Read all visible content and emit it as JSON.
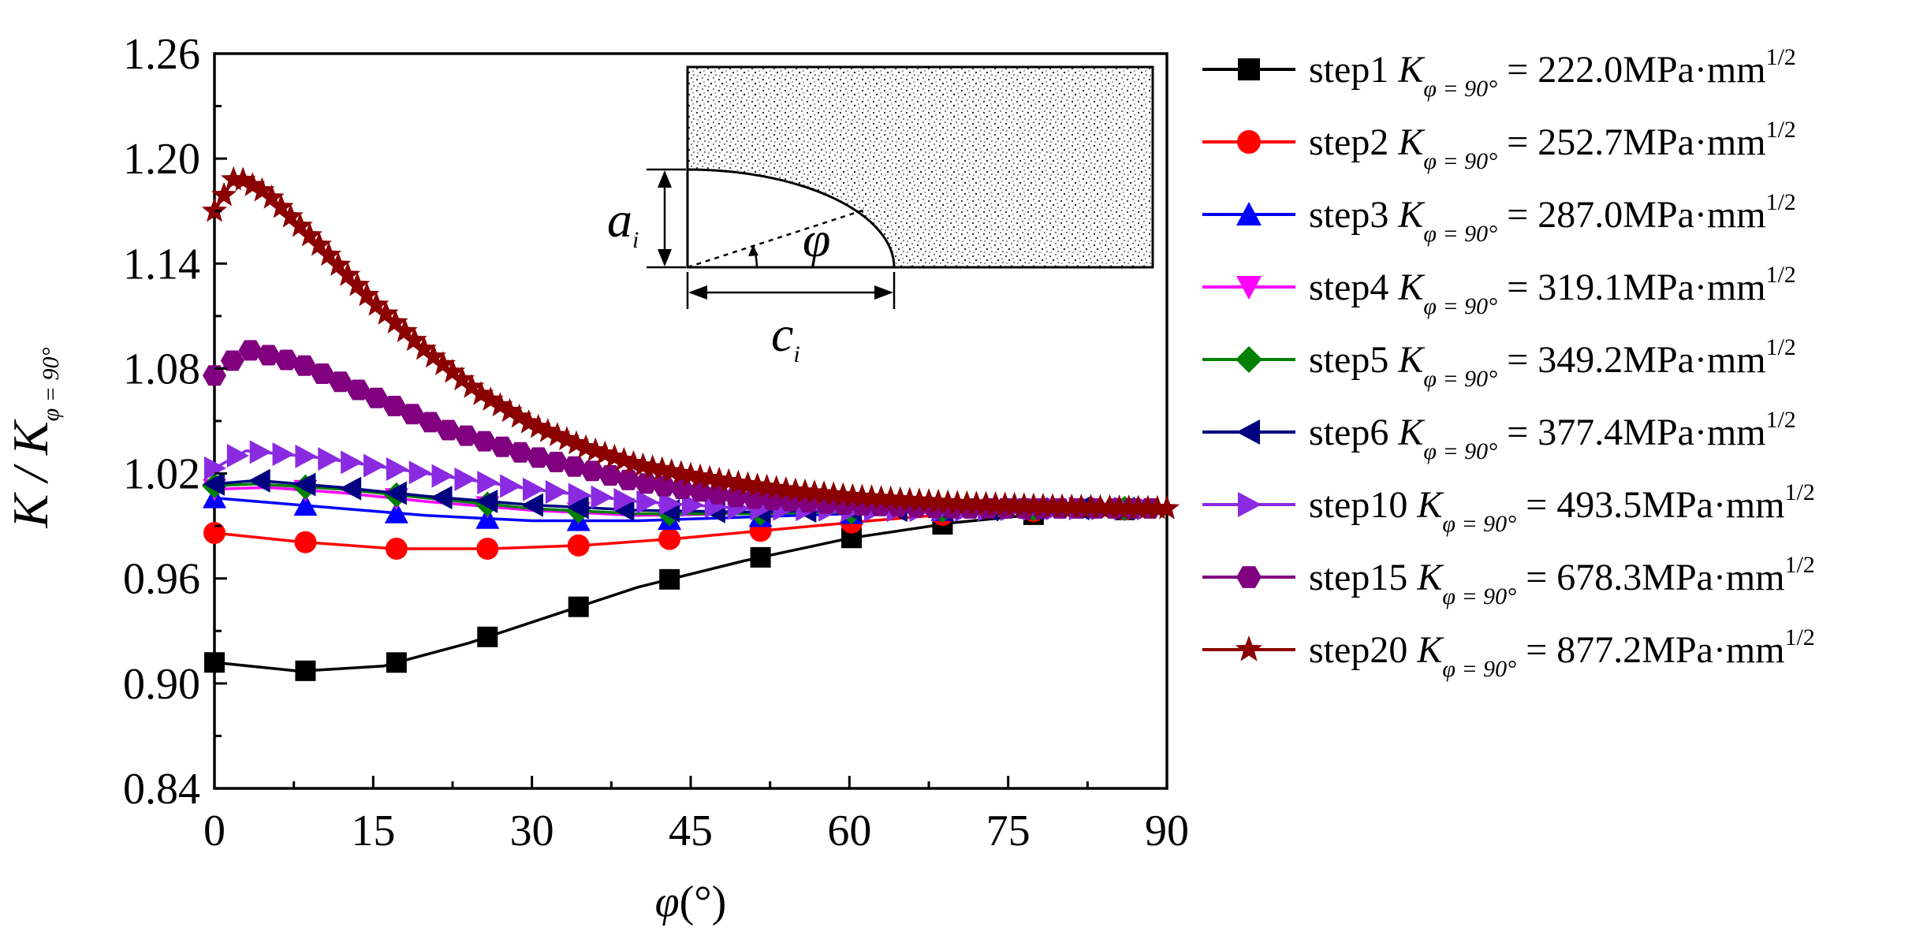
{
  "chart_data": {
    "type": "line",
    "xlabel_var": "φ",
    "xlabel_unit": "(°)",
    "ylabel_main": "K / K",
    "ylabel_sub": "φ = 90°",
    "xlim": [
      0,
      90
    ],
    "ylim": [
      0.84,
      1.26
    ],
    "xticks": [
      "0",
      "15",
      "30",
      "45",
      "60",
      "75",
      "90"
    ],
    "yticks": [
      "0.84",
      "0.90",
      "0.96",
      "1.02",
      "1.08",
      "1.14",
      "1.20",
      "1.26"
    ],
    "legend_position": "right",
    "legend_k_symbol": "K",
    "legend_k_sub": "φ = 90°",
    "legend_unit": "MPa·mm",
    "legend_exp": "1/2",
    "inset": {
      "label_a": "a",
      "label_c": "c",
      "label_i": "i",
      "label_phi": "φ"
    },
    "series": [
      {
        "name": "step1",
        "value_text": "= 222.0",
        "color": "#000000",
        "marker": "square",
        "marker_step": 8.6,
        "points": [
          [
            0,
            0.912
          ],
          [
            8,
            0.907
          ],
          [
            16,
            0.91
          ],
          [
            24,
            0.923
          ],
          [
            32,
            0.939
          ],
          [
            40,
            0.955
          ],
          [
            50,
            0.97
          ],
          [
            60,
            0.983
          ],
          [
            70,
            0.992
          ],
          [
            80,
            0.998
          ],
          [
            90,
            1.0
          ]
        ]
      },
      {
        "name": "step2",
        "value_text": "= 252.7",
        "color": "#ff0000",
        "marker": "circle",
        "marker_step": 8.6,
        "points": [
          [
            0,
            0.986
          ],
          [
            8,
            0.981
          ],
          [
            17,
            0.977
          ],
          [
            26,
            0.977
          ],
          [
            35,
            0.979
          ],
          [
            44,
            0.983
          ],
          [
            53,
            0.988
          ],
          [
            62,
            0.993
          ],
          [
            70,
            0.997
          ],
          [
            80,
            0.999
          ],
          [
            90,
            1.0
          ]
        ]
      },
      {
        "name": "step3",
        "value_text": "= 287.0",
        "color": "#0000ff",
        "marker": "triangle-up",
        "marker_step": 8.6,
        "points": [
          [
            0,
            1.006
          ],
          [
            10,
            1.001
          ],
          [
            20,
            0.996
          ],
          [
            30,
            0.993
          ],
          [
            40,
            0.993
          ],
          [
            50,
            0.995
          ],
          [
            60,
            0.997
          ],
          [
            70,
            0.999
          ],
          [
            80,
            1.0
          ],
          [
            90,
            1.0
          ]
        ]
      },
      {
        "name": "step4",
        "value_text": "= 319.1",
        "color": "#ff00ff",
        "marker": "triangle-down",
        "marker_step": 8.6,
        "points": [
          [
            0,
            1.011
          ],
          [
            5,
            1.012
          ],
          [
            12,
            1.009
          ],
          [
            20,
            1.004
          ],
          [
            30,
            0.999
          ],
          [
            40,
            0.996
          ],
          [
            50,
            0.997
          ],
          [
            60,
            0.998
          ],
          [
            70,
            0.999
          ],
          [
            80,
            1.0
          ],
          [
            90,
            1.0
          ]
        ]
      },
      {
        "name": "step5",
        "value_text": "= 349.2",
        "color": "#008000",
        "marker": "diamond",
        "marker_step": 8.6,
        "points": [
          [
            0,
            1.013
          ],
          [
            4,
            1.014
          ],
          [
            12,
            1.011
          ],
          [
            20,
            1.006
          ],
          [
            30,
            1.0
          ],
          [
            40,
            0.997
          ],
          [
            50,
            0.997
          ],
          [
            60,
            0.998
          ],
          [
            70,
            0.999
          ],
          [
            80,
            1.0
          ],
          [
            90,
            1.0
          ]
        ]
      },
      {
        "name": "step6",
        "value_text": "= 377.4",
        "color": "#000080",
        "marker": "triangle-left",
        "marker_step": 4.3,
        "points": [
          [
            0,
            1.014
          ],
          [
            4,
            1.016
          ],
          [
            12,
            1.012
          ],
          [
            20,
            1.007
          ],
          [
            30,
            1.002
          ],
          [
            40,
            0.999
          ],
          [
            50,
            0.998
          ],
          [
            60,
            0.999
          ],
          [
            70,
            0.999
          ],
          [
            80,
            1.0
          ],
          [
            90,
            1.0
          ]
        ]
      },
      {
        "name": "step10",
        "value_text": "= 493.5",
        "color": "#8a2be2",
        "marker": "triangle-right",
        "marker_step": 2.15,
        "points": [
          [
            0,
            1.023
          ],
          [
            3,
            1.033
          ],
          [
            10,
            1.029
          ],
          [
            20,
            1.02
          ],
          [
            30,
            1.011
          ],
          [
            40,
            1.004
          ],
          [
            50,
            1.0
          ],
          [
            60,
            0.999
          ],
          [
            70,
            0.999
          ],
          [
            80,
            1.0
          ],
          [
            90,
            1.0
          ]
        ]
      },
      {
        "name": "step15",
        "value_text": "= 678.3",
        "color": "#800080",
        "marker": "hexagon",
        "marker_step": 1.7,
        "points": [
          [
            0,
            1.076
          ],
          [
            3,
            1.091
          ],
          [
            8,
            1.083
          ],
          [
            15,
            1.064
          ],
          [
            22,
            1.045
          ],
          [
            30,
            1.03
          ],
          [
            40,
            1.015
          ],
          [
            50,
            1.006
          ],
          [
            60,
            1.002
          ],
          [
            70,
            1.0
          ],
          [
            80,
            1.0
          ],
          [
            90,
            1.0
          ]
        ]
      },
      {
        "name": "step20",
        "value_text": "= 877.2",
        "color": "#8b0000",
        "marker": "star",
        "marker_step": 0.9,
        "points": [
          [
            0,
            1.17
          ],
          [
            2,
            1.19
          ],
          [
            5,
            1.18
          ],
          [
            10,
            1.15
          ],
          [
            15,
            1.118
          ],
          [
            20,
            1.09
          ],
          [
            25,
            1.066
          ],
          [
            30,
            1.048
          ],
          [
            35,
            1.035
          ],
          [
            40,
            1.025
          ],
          [
            45,
            1.019
          ],
          [
            50,
            1.014
          ],
          [
            55,
            1.01
          ],
          [
            60,
            1.007
          ],
          [
            70,
            1.003
          ],
          [
            80,
            1.001
          ],
          [
            90,
            1.0
          ]
        ]
      }
    ]
  }
}
